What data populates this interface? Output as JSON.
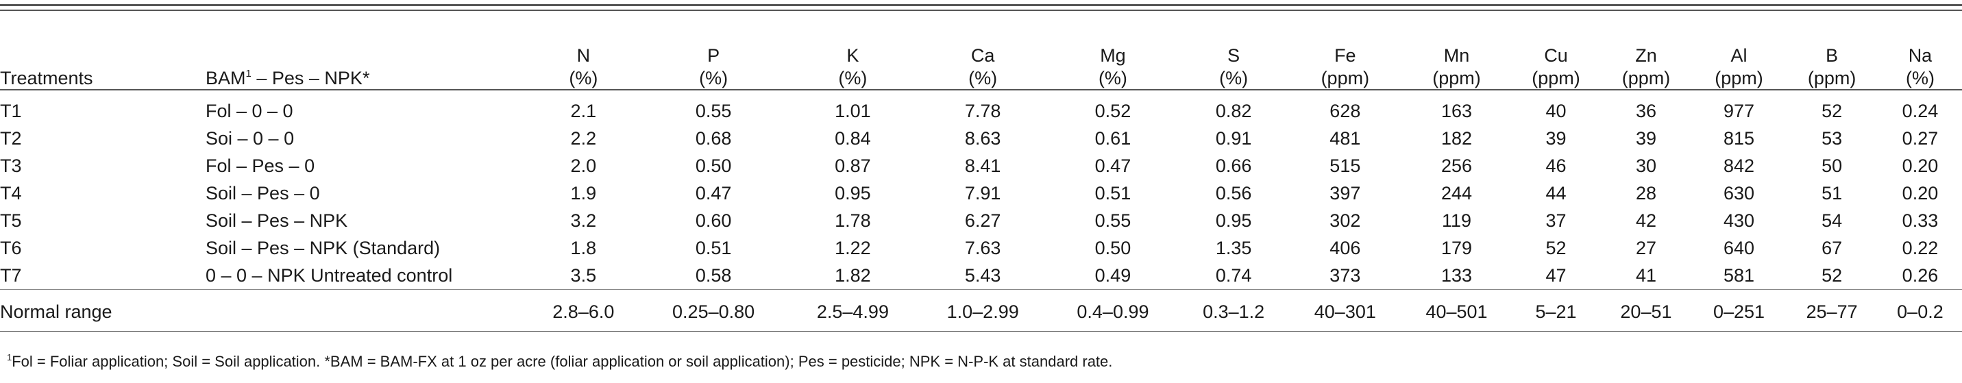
{
  "table": {
    "treatment_header": "Treatments",
    "bam_header_prefix": "BAM",
    "bam_header_sup": "1",
    "bam_header_suffix": " – Pes – NPK*",
    "columns": [
      {
        "name": "N",
        "unit": "(%)"
      },
      {
        "name": "P",
        "unit": "(%)"
      },
      {
        "name": "K",
        "unit": "(%)"
      },
      {
        "name": "Ca",
        "unit": "(%)"
      },
      {
        "name": "Mg",
        "unit": "(%)"
      },
      {
        "name": "S",
        "unit": "(%)"
      },
      {
        "name": "Fe",
        "unit": "(ppm)"
      },
      {
        "name": "Mn",
        "unit": "(ppm)"
      },
      {
        "name": "Cu",
        "unit": "(ppm)"
      },
      {
        "name": "Zn",
        "unit": "(ppm)"
      },
      {
        "name": "Al",
        "unit": "(ppm)"
      },
      {
        "name": "B",
        "unit": "(ppm)"
      },
      {
        "name": "Na",
        "unit": "(%)"
      }
    ],
    "rows": [
      {
        "treatment": "T1",
        "bam": "Fol – 0 – 0",
        "values": [
          "2.1",
          "0.55",
          "1.01",
          "7.78",
          "0.52",
          "0.82",
          "628",
          "163",
          "40",
          "36",
          "977",
          "52",
          "0.24"
        ]
      },
      {
        "treatment": "T2",
        "bam": "Soi – 0 – 0",
        "values": [
          "2.2",
          "0.68",
          "0.84",
          "8.63",
          "0.61",
          "0.91",
          "481",
          "182",
          "39",
          "39",
          "815",
          "53",
          "0.27"
        ]
      },
      {
        "treatment": "T3",
        "bam": "Fol – Pes – 0",
        "values": [
          "2.0",
          "0.50",
          "0.87",
          "8.41",
          "0.47",
          "0.66",
          "515",
          "256",
          "46",
          "30",
          "842",
          "50",
          "0.20"
        ]
      },
      {
        "treatment": "T4",
        "bam": "Soil – Pes – 0",
        "values": [
          "1.9",
          "0.47",
          "0.95",
          "7.91",
          "0.51",
          "0.56",
          "397",
          "244",
          "44",
          "28",
          "630",
          "51",
          "0.20"
        ]
      },
      {
        "treatment": "T5",
        "bam": "Soil – Pes – NPK",
        "values": [
          "3.2",
          "0.60",
          "1.78",
          "6.27",
          "0.55",
          "0.95",
          "302",
          "119",
          "37",
          "42",
          "430",
          "54",
          "0.33"
        ]
      },
      {
        "treatment": "T6",
        "bam": "Soil – Pes – NPK (Standard)",
        "values": [
          "1.8",
          "0.51",
          "1.22",
          "7.63",
          "0.50",
          "1.35",
          "406",
          "179",
          "52",
          "27",
          "640",
          "67",
          "0.22"
        ]
      },
      {
        "treatment": "T7",
        "bam": "0 – 0 – NPK Untreated control",
        "values": [
          "3.5",
          "0.58",
          "1.82",
          "5.43",
          "0.49",
          "0.74",
          "373",
          "133",
          "47",
          "41",
          "581",
          "52",
          "0.26"
        ]
      }
    ],
    "normal_range": {
      "label": "Normal range",
      "values": [
        "2.8–6.0",
        "0.25–0.80",
        "2.5–4.99",
        "1.0–2.99",
        "0.4–0.99",
        "0.3–1.2",
        "40–301",
        "40–501",
        "5–21",
        "20–51",
        "0–251",
        "25–77",
        "0–0.2"
      ]
    }
  },
  "footnote": {
    "sup": "1",
    "text": "Fol = Foliar application; Soil = Soil application. *BAM = BAM-FX at 1 oz per acre (foliar application or soil application); Pes = pesticide; NPK = N-P-K at standard rate."
  }
}
